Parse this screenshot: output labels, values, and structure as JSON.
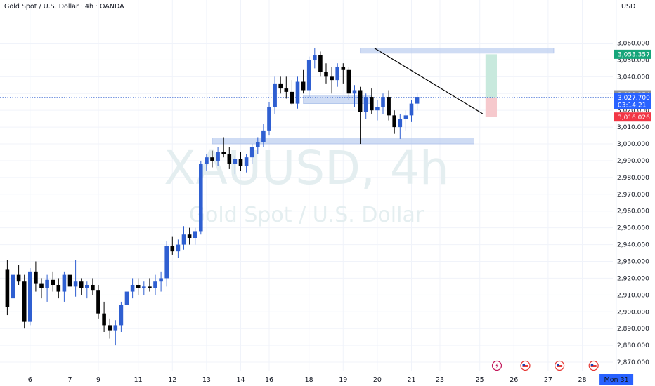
{
  "header": {
    "title": "Gold Spot / U.S. Dollar · 4h · OANDA",
    "currency": "USD"
  },
  "watermark": {
    "symbol": "XAUUSD, 4h",
    "name": "Gold Spot / U.S. Dollar"
  },
  "colors": {
    "up": "#2f5fd1",
    "down": "#000000",
    "zone": "#bfd0f0",
    "trendline": "#000000",
    "target": "#c8e9dd",
    "stop": "#f6c9cd",
    "price_line": "#2f5fd1",
    "tag_green": "#16a57a",
    "tag_gray": "#8c9096",
    "tag_blue": "#2962ff",
    "tag_red": "#f23645"
  },
  "chart_data": {
    "type": "candlestick",
    "ylim": [
      2865,
      3074
    ],
    "y_ticks": [
      "2,870.000",
      "2,880.000",
      "2,890.000",
      "2,900.000",
      "2,910.000",
      "2,920.000",
      "2,930.000",
      "2,940.000",
      "2,950.000",
      "2,960.000",
      "2,970.000",
      "2,980.000",
      "2,990.000",
      "3,000.000",
      "3,010.000",
      "3,020.000",
      "3,030.000",
      "3,040.000",
      "3,050.000",
      "3,060.000"
    ],
    "x_ticks": [
      {
        "label": "6",
        "bar": 4
      },
      {
        "label": "7",
        "bar": 11
      },
      {
        "label": "9",
        "bar": 16
      },
      {
        "label": "11",
        "bar": 23
      },
      {
        "label": "12",
        "bar": 29
      },
      {
        "label": "13",
        "bar": 35
      },
      {
        "label": "14",
        "bar": 41
      },
      {
        "label": "16",
        "bar": 46
      },
      {
        "label": "18",
        "bar": 53
      },
      {
        "label": "19",
        "bar": 59
      },
      {
        "label": "20",
        "bar": 65
      },
      {
        "label": "21",
        "bar": 71
      },
      {
        "label": "23",
        "bar": 76
      },
      {
        "label": "25",
        "bar": 83
      },
      {
        "label": "26",
        "bar": 89
      },
      {
        "label": "27",
        "bar": 95
      },
      {
        "label": "28",
        "bar": 101
      },
      {
        "label": "Mon 31",
        "bar": 107
      }
    ],
    "event_icons": [
      {
        "name": "lightning-event-icon",
        "bar": 86
      },
      {
        "name": "us-flag-event-icon",
        "bar": 91
      },
      {
        "name": "us-flag-event-icon",
        "bar": 97
      },
      {
        "name": "us-flag-event-icon",
        "bar": 103
      }
    ],
    "candles": [
      [
        2925,
        2931,
        2898,
        2903
      ],
      [
        2908,
        2926,
        2902,
        2922
      ],
      [
        2922,
        2928,
        2916,
        2918
      ],
      [
        2918,
        2922,
        2890,
        2894
      ],
      [
        2894,
        2926,
        2892,
        2924
      ],
      [
        2924,
        2930,
        2912,
        2917
      ],
      [
        2917,
        2920,
        2908,
        2914
      ],
      [
        2914,
        2922,
        2906,
        2919
      ],
      [
        2919,
        2924,
        2912,
        2916
      ],
      [
        2916,
        2920,
        2908,
        2912
      ],
      [
        2912,
        2924,
        2906,
        2922
      ],
      [
        2922,
        2926,
        2912,
        2915
      ],
      [
        2915,
        2931,
        2909,
        2918
      ],
      [
        2918,
        2920,
        2910,
        2914
      ],
      [
        2914,
        2918,
        2908,
        2916
      ],
      [
        2916,
        2920,
        2910,
        2913
      ],
      [
        2913,
        2916,
        2896,
        2899
      ],
      [
        2899,
        2906,
        2888,
        2892
      ],
      [
        2892,
        2896,
        2884,
        2889
      ],
      [
        2889,
        2895,
        2880,
        2892
      ],
      [
        2892,
        2906,
        2888,
        2904
      ],
      [
        2904,
        2914,
        2900,
        2912
      ],
      [
        2912,
        2920,
        2908,
        2916
      ],
      [
        2916,
        2920,
        2910,
        2914
      ],
      [
        2914,
        2918,
        2910,
        2915
      ],
      [
        2915,
        2920,
        2912,
        2914
      ],
      [
        2914,
        2922,
        2910,
        2918
      ],
      [
        2918,
        2924,
        2912,
        2920
      ],
      [
        2920,
        2942,
        2915,
        2939
      ],
      [
        2939,
        2945,
        2934,
        2936
      ],
      [
        2936,
        2943,
        2932,
        2940
      ],
      [
        2940,
        2951,
        2937,
        2946
      ],
      [
        2946,
        2950,
        2940,
        2944
      ],
      [
        2944,
        2950,
        2940,
        2948
      ],
      [
        2948,
        2990,
        2946,
        2988
      ],
      [
        2988,
        2994,
        2984,
        2992
      ],
      [
        2992,
        2996,
        2986,
        2990
      ],
      [
        2990,
        2998,
        2987,
        2995
      ],
      [
        2995,
        3004,
        2992,
        2994
      ],
      [
        2994,
        2998,
        2985,
        2988
      ],
      [
        2988,
        2993,
        2982,
        2991
      ],
      [
        2991,
        2995,
        2984,
        2987
      ],
      [
        2987,
        2994,
        2983,
        2992
      ],
      [
        2992,
        3000,
        2988,
        2998
      ],
      [
        2998,
        3004,
        2994,
        3001
      ],
      [
        3001,
        3012,
        2998,
        3008
      ],
      [
        3008,
        3025,
        3005,
        3022
      ],
      [
        3022,
        3040,
        3018,
        3036
      ],
      [
        3036,
        3040,
        3030,
        3033
      ],
      [
        3033,
        3040,
        3027,
        3031
      ],
      [
        3031,
        3038,
        3023,
        3024
      ],
      [
        3024,
        3040,
        3021,
        3037
      ],
      [
        3037,
        3044,
        3030,
        3032
      ],
      [
        3032,
        3052,
        3028,
        3050
      ],
      [
        3050,
        3057,
        3045,
        3053
      ],
      [
        3053,
        3055,
        3040,
        3043
      ],
      [
        3043,
        3048,
        3036,
        3040
      ],
      [
        3040,
        3046,
        3030,
        3038
      ],
      [
        3038,
        3048,
        3034,
        3046
      ],
      [
        3046,
        3048,
        3036,
        3044
      ],
      [
        3044,
        3046,
        3026,
        3030
      ],
      [
        3030,
        3035,
        3022,
        3032
      ],
      [
        3032,
        3034,
        3000,
        3019
      ],
      [
        3019,
        3030,
        3015,
        3028
      ],
      [
        3028,
        3033,
        3018,
        3020
      ],
      [
        3020,
        3026,
        3014,
        3022
      ],
      [
        3022,
        3030,
        3018,
        3028
      ],
      [
        3028,
        3032,
        3014,
        3017
      ],
      [
        3017,
        3020,
        3006,
        3010
      ],
      [
        3010,
        3018,
        3003,
        3015
      ],
      [
        3015,
        3020,
        3008,
        3017
      ],
      [
        3017,
        3026,
        3013,
        3024
      ],
      [
        3024,
        3030,
        3020,
        3028
      ]
    ],
    "zones": [
      {
        "from_bar": 52,
        "to_bar": 64,
        "y1": 3024,
        "y2": 3029
      },
      {
        "from_bar": 36,
        "to_bar": 82,
        "y1": 3000,
        "y2": 3003.5
      },
      {
        "from_bar": 62,
        "to_bar": 96,
        "y1": 3054,
        "y2": 3057
      }
    ],
    "trendline": {
      "bar1": 64.5,
      "y1": 3057,
      "bar2": 83.5,
      "y2": 3018
    },
    "position": {
      "from_bar": 84,
      "to_bar": 86,
      "entry": 3027.7,
      "target": 3053.357,
      "stop": 3016.026
    },
    "current_price": 3027.7,
    "price_tags": [
      {
        "label": "3,053.357",
        "value": 3053.357,
        "color": "green"
      },
      {
        "label": "3,029.254",
        "value": 3029.254,
        "color": "gray"
      },
      {
        "label": "3,027.700",
        "value": 3027.7,
        "color": "blue"
      },
      {
        "label": "03:14:21",
        "value": 3023.3,
        "color": "blue"
      },
      {
        "label": "3,016.026",
        "value": 3016.026,
        "color": "red"
      }
    ]
  }
}
